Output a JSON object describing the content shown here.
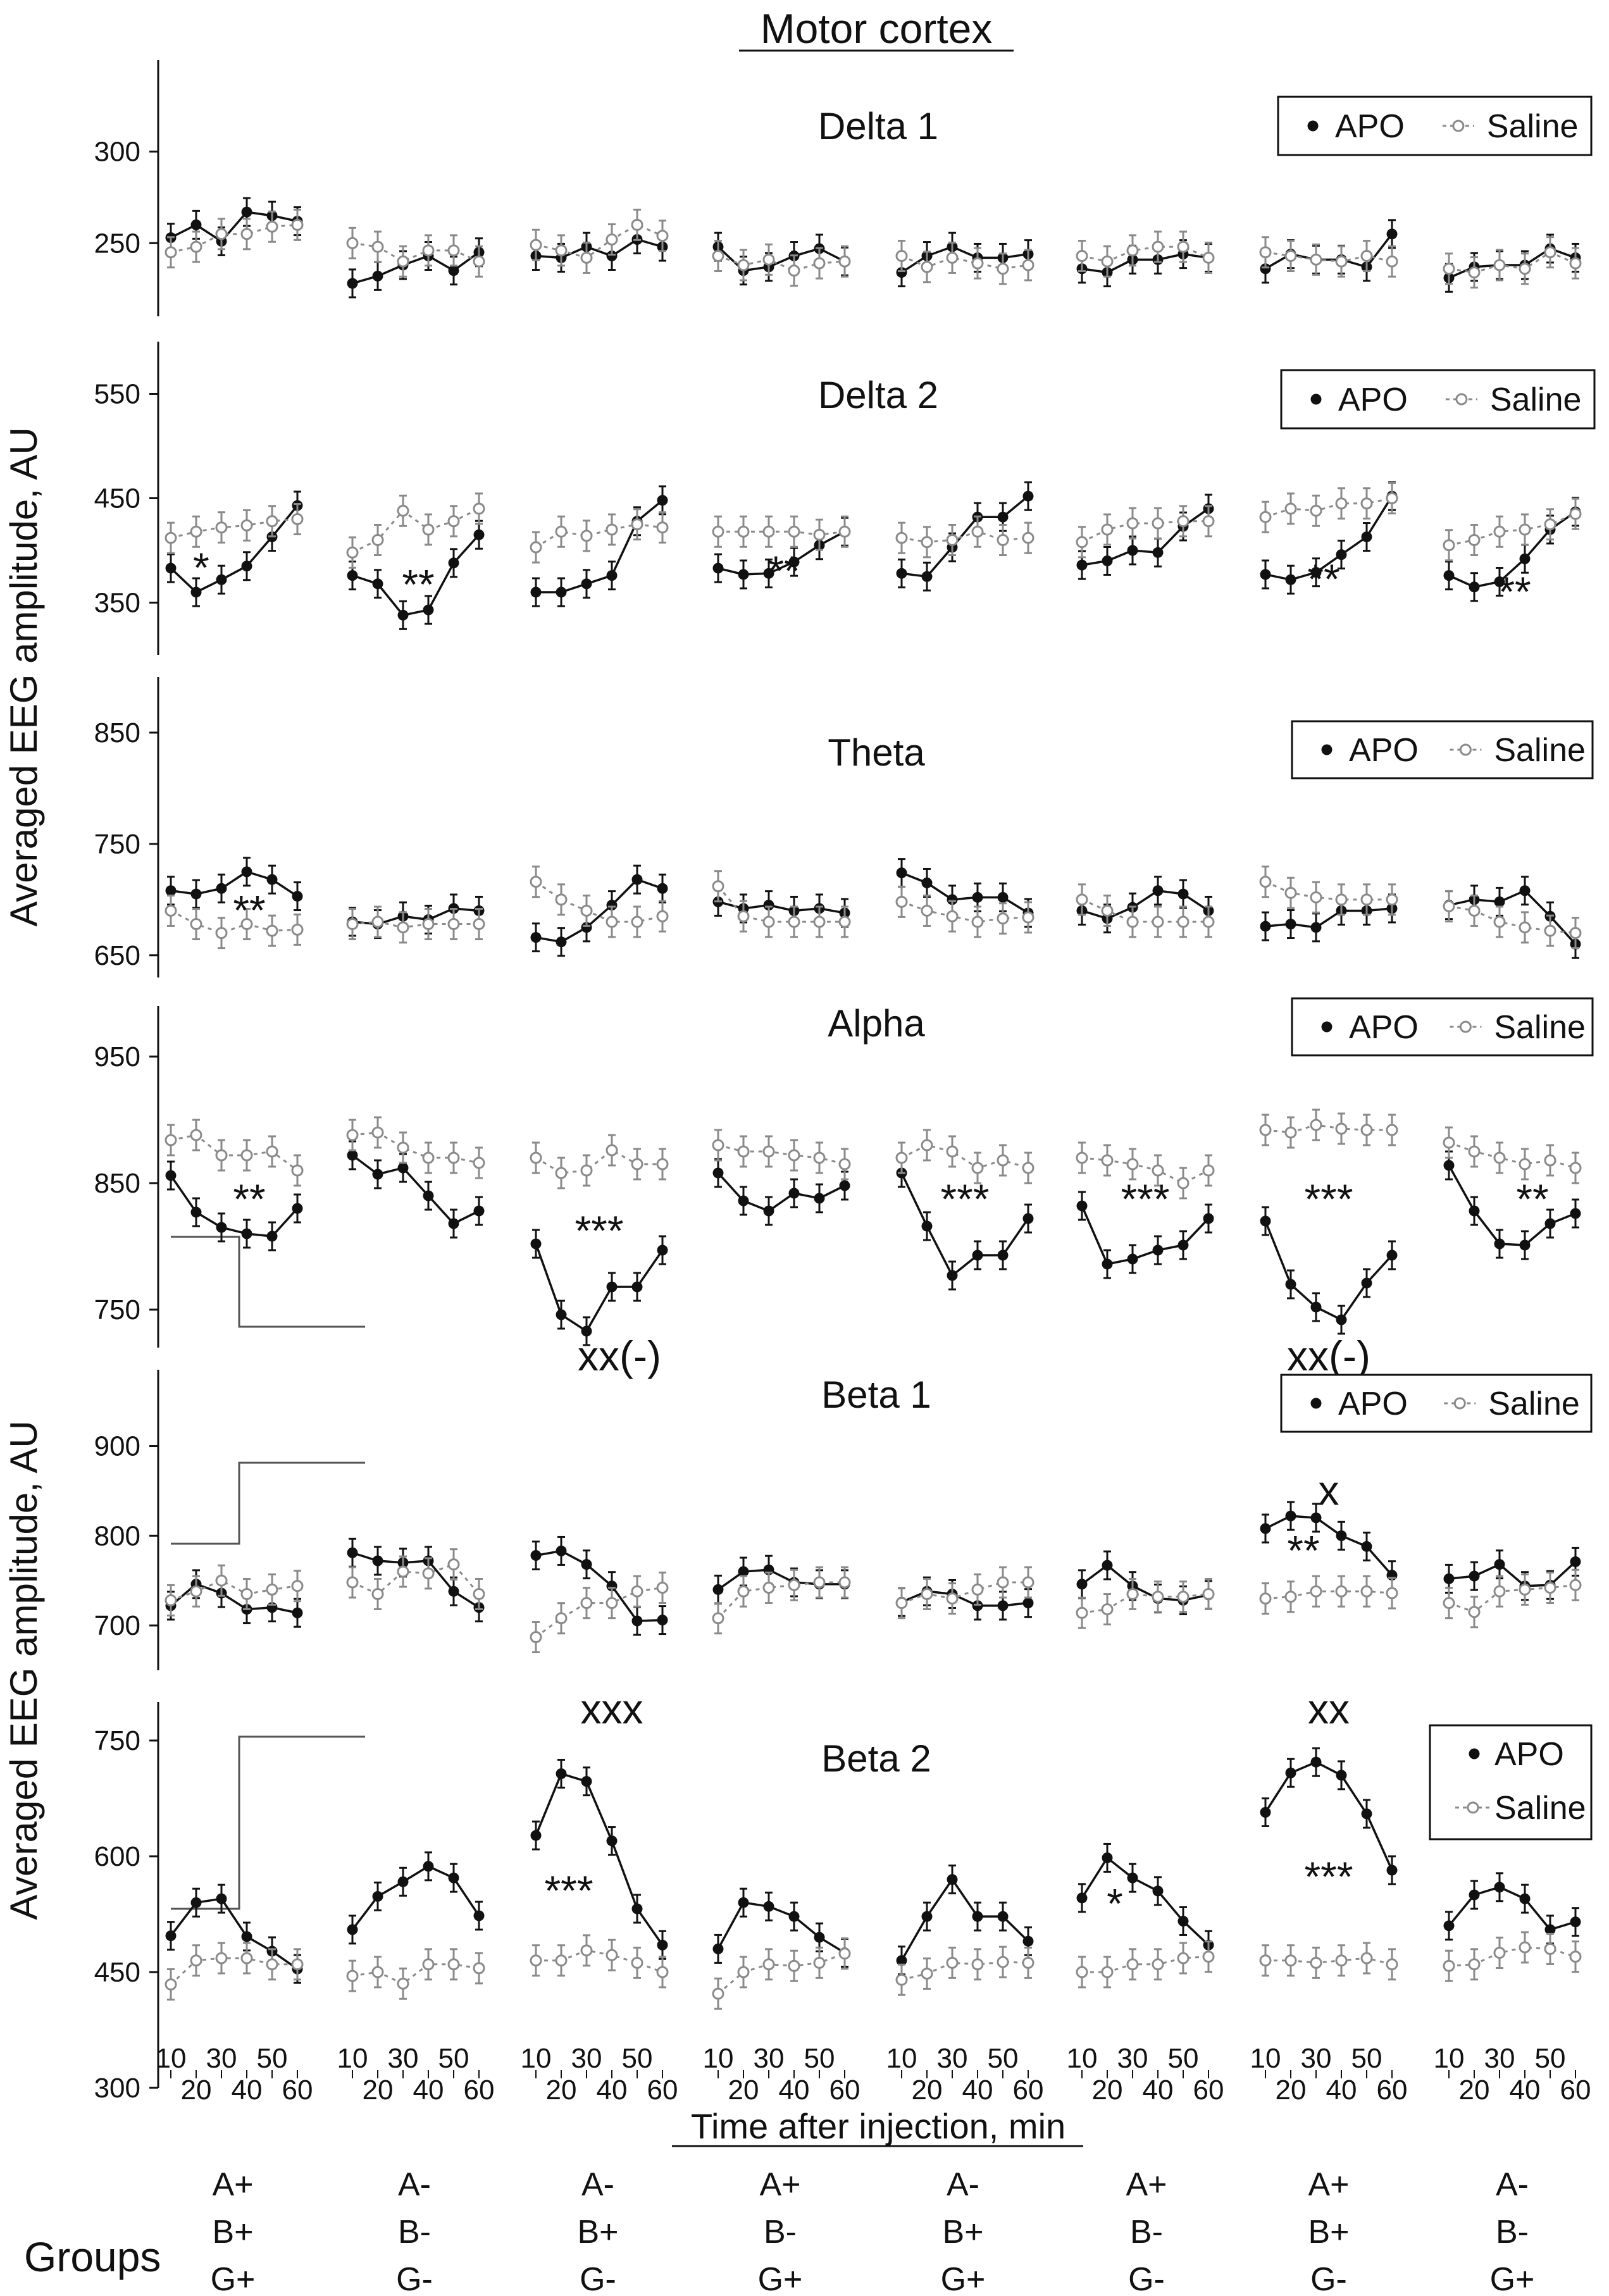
{
  "title": "Motor cortex",
  "xlabel": "Time after injection, min",
  "ylabel": "Averaged EEG amplitude, AU",
  "groups_label": "Groups",
  "legend": {
    "apo": "APO",
    "saline": "Saline"
  },
  "colors": {
    "apo": "#111111",
    "saline": "#8a8a8a"
  },
  "groups": [
    [
      "A+",
      "B+",
      "G+"
    ],
    [
      "A-",
      "B-",
      "G-"
    ],
    [
      "A-",
      "B+",
      "G-"
    ],
    [
      "A+",
      "B-",
      "G+"
    ],
    [
      "A-",
      "B+",
      "G+"
    ],
    [
      "A+",
      "B-",
      "G-"
    ],
    [
      "A+",
      "B+",
      "G-"
    ],
    [
      "A-",
      "B-",
      "G+"
    ]
  ],
  "x_ticks": {
    "odd": [
      "10",
      "30",
      "50"
    ],
    "even": [
      "20",
      "40",
      "60"
    ]
  },
  "chart_data": [
    {
      "type": "line",
      "title": "Delta 1",
      "ylim": [
        210,
        350
      ],
      "yticks": [
        "300",
        "250"
      ],
      "legend_position": "top-right",
      "x": [
        10,
        20,
        30,
        40,
        50,
        60
      ],
      "series": [
        {
          "name": "APO",
          "groups": [
            [
              253,
              260,
              251,
              267,
              265,
              262
            ],
            [
              228,
              232,
              238,
              243,
              235,
              245
            ],
            [
              243,
              242,
              248,
              243,
              252,
              248
            ],
            [
              248,
              235,
              237,
              243,
              247,
              240
            ],
            [
              234,
              243,
              248,
              242,
              242,
              244
            ],
            [
              236,
              234,
              241,
              241,
              244,
              242
            ],
            [
              236,
              244,
              241,
              241,
              237,
              255
            ],
            [
              231,
              237,
              238,
              238,
              247,
              242
            ]
          ]
        },
        {
          "name": "Saline",
          "groups": [
            [
              245,
              248,
              255,
              255,
              259,
              260
            ],
            [
              250,
              248,
              240,
              246,
              246,
              240
            ],
            [
              249,
              246,
              242,
              252,
              260,
              254
            ],
            [
              243,
              238,
              241,
              235,
              239,
              240
            ],
            [
              243,
              237,
              242,
              239,
              236,
              238
            ],
            [
              243,
              240,
              246,
              248,
              248,
              242
            ],
            [
              245,
              243,
              241,
              240,
              243,
              240
            ],
            [
              236,
              234,
              238,
              236,
              245,
              239
            ]
          ]
        }
      ]
    },
    {
      "type": "line",
      "title": "Delta 2",
      "ylim": [
        300,
        600
      ],
      "yticks": [
        "550",
        "450",
        "350"
      ],
      "legend_position": "top-right",
      "x": [
        10,
        20,
        30,
        40,
        50,
        60
      ],
      "series": [
        {
          "name": "APO",
          "groups": [
            [
              383,
              360,
              372,
              385,
              413,
              443
            ],
            [
              376,
              368,
              338,
              343,
              388,
              415
            ],
            [
              360,
              360,
              368,
              376,
              428,
              448
            ],
            [
              383,
              377,
              378,
              389,
              405,
              418
            ],
            [
              378,
              375,
              403,
              432,
              432,
              452
            ],
            [
              386,
              390,
              400,
              398,
              423,
              440
            ],
            [
              377,
              372,
              379,
              396,
              413,
              452
            ],
            [
              376,
              365,
              370,
              392,
              420,
              437
            ]
          ]
        },
        {
          "name": "Saline",
          "groups": [
            [
              412,
              418,
              422,
              424,
              428,
              430
            ],
            [
              398,
              410,
              438,
              420,
              428,
              440
            ],
            [
              403,
              418,
              414,
              420,
              425,
              422
            ],
            [
              418,
              418,
              418,
              418,
              415,
              418
            ],
            [
              412,
              408,
              410,
              418,
              410,
              412
            ],
            [
              408,
              420,
              426,
              426,
              428,
              428
            ],
            [
              432,
              440,
              438,
              445,
              445,
              450
            ],
            [
              405,
              410,
              418,
              420,
              425,
              435
            ]
          ]
        }
      ]
    },
    {
      "type": "line",
      "title": "Theta",
      "ylim": [
        630,
        900
      ],
      "yticks": [
        "850",
        "750",
        "650"
      ],
      "legend_position": "top-right",
      "x": [
        10,
        20,
        30,
        40,
        50,
        60
      ],
      "series": [
        {
          "name": "APO",
          "groups": [
            [
              708,
              705,
              710,
              725,
              718,
              703
            ],
            [
              680,
              678,
              685,
              682,
              692,
              690
            ],
            [
              666,
              662,
              675,
              695,
              718,
              710
            ],
            [
              698,
              692,
              695,
              690,
              692,
              688
            ],
            [
              724,
              715,
              700,
              702,
              702,
              688
            ],
            [
              690,
              683,
              693,
              708,
              705,
              690
            ],
            [
              676,
              678,
              675,
              690,
              690,
              692
            ],
            [
              695,
              700,
              698,
              708,
              685,
              660
            ]
          ]
        },
        {
          "name": "Saline",
          "groups": [
            [
              690,
              678,
              670,
              678,
              672,
              673
            ],
            [
              678,
              680,
              675,
              678,
              678,
              678
            ],
            [
              716,
              700,
              690,
              680,
              680,
              685
            ],
            [
              712,
              685,
              680,
              680,
              680,
              680
            ],
            [
              698,
              690,
              685,
              680,
              683,
              684
            ],
            [
              700,
              690,
              680,
              680,
              680,
              680
            ],
            [
              716,
              706,
              702,
              700,
              700,
              700
            ],
            [
              694,
              690,
              680,
              675,
              672,
              670
            ]
          ]
        }
      ]
    },
    {
      "type": "line",
      "title": "Alpha",
      "ylim": [
        720,
        990
      ],
      "yticks": [
        "950",
        "850",
        "750"
      ],
      "legend_position": "top-right",
      "x": [
        10,
        20,
        30,
        40,
        50,
        60
      ],
      "series": [
        {
          "name": "APO",
          "groups": [
            [
              856,
              827,
              815,
              810,
              808,
              830
            ],
            [
              872,
              857,
              862,
              840,
              818,
              828
            ],
            [
              802,
              746,
              733,
              768,
              768,
              797
            ],
            [
              858,
              836,
              828,
              842,
              838,
              848
            ],
            [
              858,
              816,
              777,
              793,
              793,
              822
            ],
            [
              832,
              786,
              790,
              797,
              801,
              822
            ],
            [
              820,
              770,
              752,
              742,
              771,
              793
            ],
            [
              864,
              828,
              802,
              801,
              818,
              826
            ]
          ]
        },
        {
          "name": "Saline",
          "groups": [
            [
              884,
              888,
              872,
              872,
              875,
              860
            ],
            [
              888,
              890,
              878,
              870,
              870,
              866
            ],
            [
              870,
              858,
              860,
              876,
              865,
              865
            ],
            [
              880,
              875,
              875,
              872,
              870,
              865
            ],
            [
              870,
              880,
              875,
              862,
              868,
              862
            ],
            [
              870,
              868,
              865,
              860,
              850,
              860
            ],
            [
              892,
              890,
              896,
              893,
              892,
              892
            ],
            [
              882,
              875,
              870,
              865,
              868,
              862
            ]
          ]
        }
      ]
    },
    {
      "type": "line",
      "title": "Beta 1",
      "ylim": [
        650,
        985
      ],
      "yticks": [
        "900",
        "800",
        "700"
      ],
      "legend_position": "top-right",
      "x": [
        10,
        20,
        30,
        40,
        50,
        60
      ],
      "series": [
        {
          "name": "APO",
          "groups": [
            [
              722,
              746,
              736,
              718,
              720,
              714
            ],
            [
              781,
              772,
              770,
              772,
              738,
              720
            ],
            [
              778,
              783,
              768,
              744,
              705,
              706
            ],
            [
              740,
              760,
              762,
              748,
              746,
              746
            ],
            [
              726,
              738,
              735,
              722,
              722,
              725
            ],
            [
              746,
              767,
              744,
              730,
              728,
              734
            ],
            [
              808,
              822,
              820,
              800,
              788,
              756
            ],
            [
              752,
              755,
              768,
              744,
              745,
              771
            ]
          ]
        },
        {
          "name": "Saline",
          "groups": [
            [
              728,
              738,
              750,
              735,
              740,
              744
            ],
            [
              748,
              735,
              760,
              758,
              768,
              735
            ],
            [
              687,
              708,
              725,
              725,
              738,
              742
            ],
            [
              708,
              738,
              742,
              745,
              748,
              748
            ],
            [
              725,
              735,
              730,
              740,
              748,
              748
            ],
            [
              714,
              718,
              735,
              732,
              732,
              735
            ],
            [
              730,
              732,
              738,
              738,
              738,
              736
            ],
            [
              725,
              715,
              738,
              740,
              742,
              745
            ]
          ]
        }
      ]
    },
    {
      "type": "line",
      "title": "Beta 2",
      "ylim": [
        300,
        800
      ],
      "yticks": [
        "750",
        "600",
        "450",
        "300"
      ],
      "legend_position": "top-right",
      "x": [
        10,
        20,
        30,
        40,
        50,
        60
      ],
      "series": [
        {
          "name": "APO",
          "groups": [
            [
              497,
              540,
              545,
              496,
              477,
              454
            ],
            [
              505,
              548,
              567,
              587,
              572,
              523
            ],
            [
              627,
              707,
              697,
              620,
              532,
              485
            ],
            [
              480,
              540,
              535,
              522,
              495,
              475
            ],
            [
              465,
              522,
              570,
              522,
              522,
              490
            ],
            [
              546,
              598,
              572,
              555,
              516,
              485
            ],
            [
              657,
              708,
              722,
              705,
              655,
              582
            ],
            [
              510,
              550,
              560,
              545,
              505,
              515
            ]
          ]
        },
        {
          "name": "Saline",
          "groups": [
            [
              434,
              465,
              468,
              468,
              460,
              460
            ],
            [
              445,
              450,
              435,
              460,
              460,
              455
            ],
            [
              465,
              465,
              478,
              472,
              462,
              450
            ],
            [
              422,
              450,
              460,
              458,
              462,
              474
            ],
            [
              440,
              448,
              462,
              460,
              463,
              462
            ],
            [
              450,
              450,
              460,
              460,
              468,
              470
            ],
            [
              465,
              465,
              462,
              465,
              468,
              460
            ],
            [
              458,
              460,
              475,
              482,
              480,
              470
            ]
          ]
        }
      ]
    }
  ],
  "annotations": [
    [
      {
        "text": "",
        "group": 0
      }
    ],
    [
      {
        "text": "*",
        "group": 0,
        "col": 2.2,
        "val": 383
      },
      {
        "text": "**",
        "group": 1,
        "col": 3.6,
        "val": 367
      },
      {
        "text": "**",
        "group": 3,
        "col": 3.6,
        "val": 380
      },
      {
        "text": "**",
        "group": 6,
        "col": 3.3,
        "val": 372
      },
      {
        "text": "**",
        "group": 7,
        "col": 3.6,
        "val": 360
      }
    ],
    [
      {
        "text": "**",
        "group": 0,
        "col": 4.1,
        "val": 690
      }
    ],
    [
      {
        "text": "**",
        "group": 0,
        "col": 4.1,
        "val": 837
      },
      {
        "text": "***",
        "group": 2,
        "col": 3.5,
        "val": 812
      },
      {
        "text": "xx(-)",
        "group": 2,
        "col": 4.3,
        "val": 713
      },
      {
        "text": "***",
        "group": 4,
        "col": 3.5,
        "val": 837
      },
      {
        "text": "***",
        "group": 5,
        "col": 3.5,
        "val": 837
      },
      {
        "text": "***",
        "group": 6,
        "col": 3.5,
        "val": 837
      },
      {
        "text": "xx(-)",
        "group": 6,
        "col": 3.5,
        "val": 713
      },
      {
        "text": "**",
        "group": 7,
        "col": 4.3,
        "val": 837
      }
    ],
    [
      {
        "text": "x",
        "group": 6,
        "col": 3.5,
        "val": 850
      },
      {
        "text": "**",
        "group": 6,
        "col": 2.5,
        "val": 783
      }
    ],
    [
      {
        "text": "xxx",
        "group": 2,
        "col": 4.0,
        "val": 790
      },
      {
        "text": "***",
        "group": 2,
        "col": 2.3,
        "val": 555
      },
      {
        "text": "*",
        "group": 5,
        "col": 2.3,
        "val": 538
      },
      {
        "text": "xx",
        "group": 6,
        "col": 3.5,
        "val": 790
      },
      {
        "text": "***",
        "group": 6,
        "col": 3.5,
        "val": 573
      }
    ]
  ]
}
